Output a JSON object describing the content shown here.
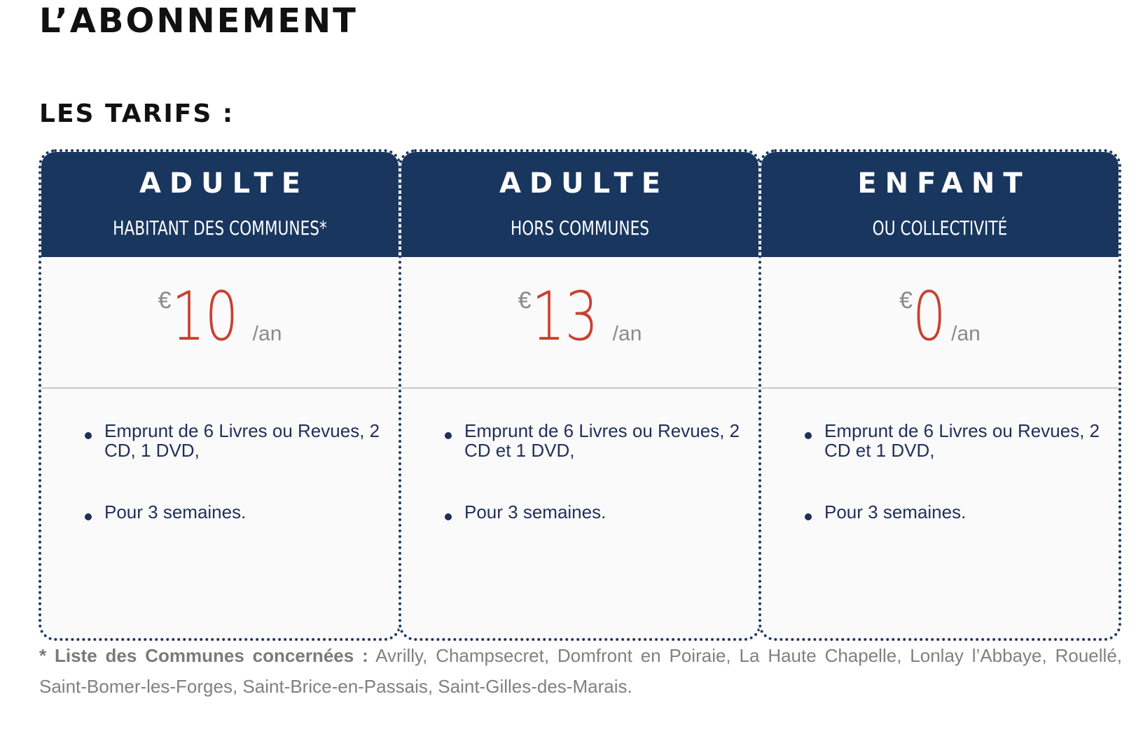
{
  "page_title": "L’ABONNEMENT",
  "section_title": "LES TARIFS :",
  "cards": [
    {
      "title": "ADULTE",
      "subtitle": "HABITANT DES COMMUNES*",
      "currency": "€",
      "amount": "10",
      "period": "/an",
      "features": [
        "Emprunt de 6 Livres ou Revues, 2 CD, 1 DVD,",
        "Pour 3 semaines."
      ]
    },
    {
      "title": "ADULTE",
      "subtitle": "HORS COMMUNES",
      "currency": "€",
      "amount": "13",
      "period": "/an",
      "features": [
        "Emprunt de 6 Livres ou Revues, 2 CD et 1 DVD,",
        "Pour 3 semaines."
      ]
    },
    {
      "title": "ENFANT",
      "subtitle": "OU COLLECTIVITÉ",
      "currency": "€",
      "amount": "0",
      "period": "/an",
      "features": [
        "Emprunt de 6 Livres ou Revues, 2 CD et 1 DVD,",
        "Pour 3 semaines."
      ]
    }
  ],
  "footnote": {
    "label": "* Liste des Communes concernées :",
    "text": " Avrilly, Champsecret, Domfront en Poiraie, La Haute Chapelle, Lonlay l’Abbaye, Rouellé, Saint-Bomer-les-Forges, Saint-Brice-en-Passais, Saint-Gilles-des-Marais."
  },
  "colors": {
    "header_bg": "#18365e",
    "price": "#c8412f",
    "muted": "#8a8a8a",
    "border": "#1d3964"
  }
}
